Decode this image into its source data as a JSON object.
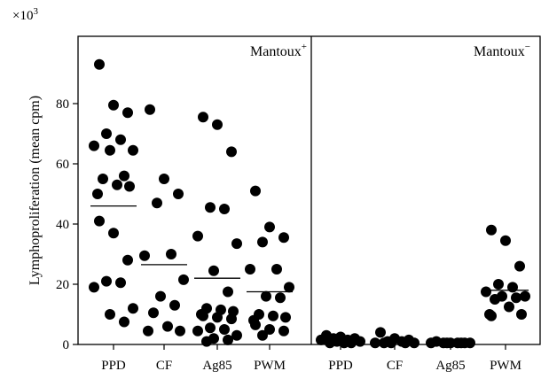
{
  "chart_data": {
    "type": "scatter",
    "ylabel": "Lymphoproliferation (mean cpm)",
    "y_multiplier": "×10",
    "y_multiplier_exponent": "3",
    "ylim": [
      0,
      100
    ],
    "yticks": [
      0,
      20,
      40,
      60,
      80
    ],
    "grid": false,
    "panels": [
      {
        "label": "Mantoux",
        "label_sup": "+",
        "groups": [
          {
            "category": "PPD",
            "mean": 46,
            "values": [
              93,
              79.5,
              77,
              70,
              68,
              66,
              64.5,
              64.5,
              56,
              55,
              53,
              52.5,
              50,
              41,
              37,
              28,
              21,
              20.5,
              19,
              12,
              10,
              7.5
            ]
          },
          {
            "category": "CF",
            "mean": 26.5,
            "values": [
              78,
              55,
              50,
              47,
              30,
              29.5,
              21.5,
              16,
              13,
              10.5,
              6,
              4.5,
              4.5
            ]
          },
          {
            "category": "Ag85",
            "mean": 22,
            "values": [
              75.5,
              73,
              64,
              45.5,
              45,
              36,
              33.5,
              24.5,
              17.5,
              12,
              11.5,
              11,
              10,
              9.5,
              9,
              8.5,
              5.5,
              5,
              4.5,
              3,
              2,
              1.5,
              1
            ]
          },
          {
            "category": "PWM",
            "mean": 17.5,
            "values": [
              51,
              39,
              35.5,
              34,
              25,
              25,
              19,
              16,
              15.5,
              10,
              9.5,
              9,
              8,
              6.5,
              5,
              4.5,
              3
            ]
          }
        ]
      },
      {
        "label": "Mantoux",
        "label_sup": "−",
        "groups": [
          {
            "category": "PPD",
            "mean": 1.5,
            "values": [
              3,
              2.5,
              2,
              2,
              1.5,
              1.5,
              1,
              1,
              0.5,
              0.5,
              0.5
            ]
          },
          {
            "category": "CF",
            "mean": 1,
            "values": [
              4,
              2,
              1.5,
              1,
              1,
              0.5,
              0.5,
              0.5,
              0.5,
              0.5
            ]
          },
          {
            "category": "Ag85",
            "mean": 0.5,
            "values": [
              1,
              0.5,
              0.5,
              0.5,
              0.5,
              0.5,
              0.5,
              0.5,
              0.5
            ]
          },
          {
            "category": "PWM",
            "mean": 18,
            "values": [
              38,
              34.5,
              26,
              20,
              19,
              17.5,
              16,
              16,
              15.5,
              15,
              12.5,
              10,
              10,
              9.5
            ]
          }
        ]
      }
    ]
  }
}
